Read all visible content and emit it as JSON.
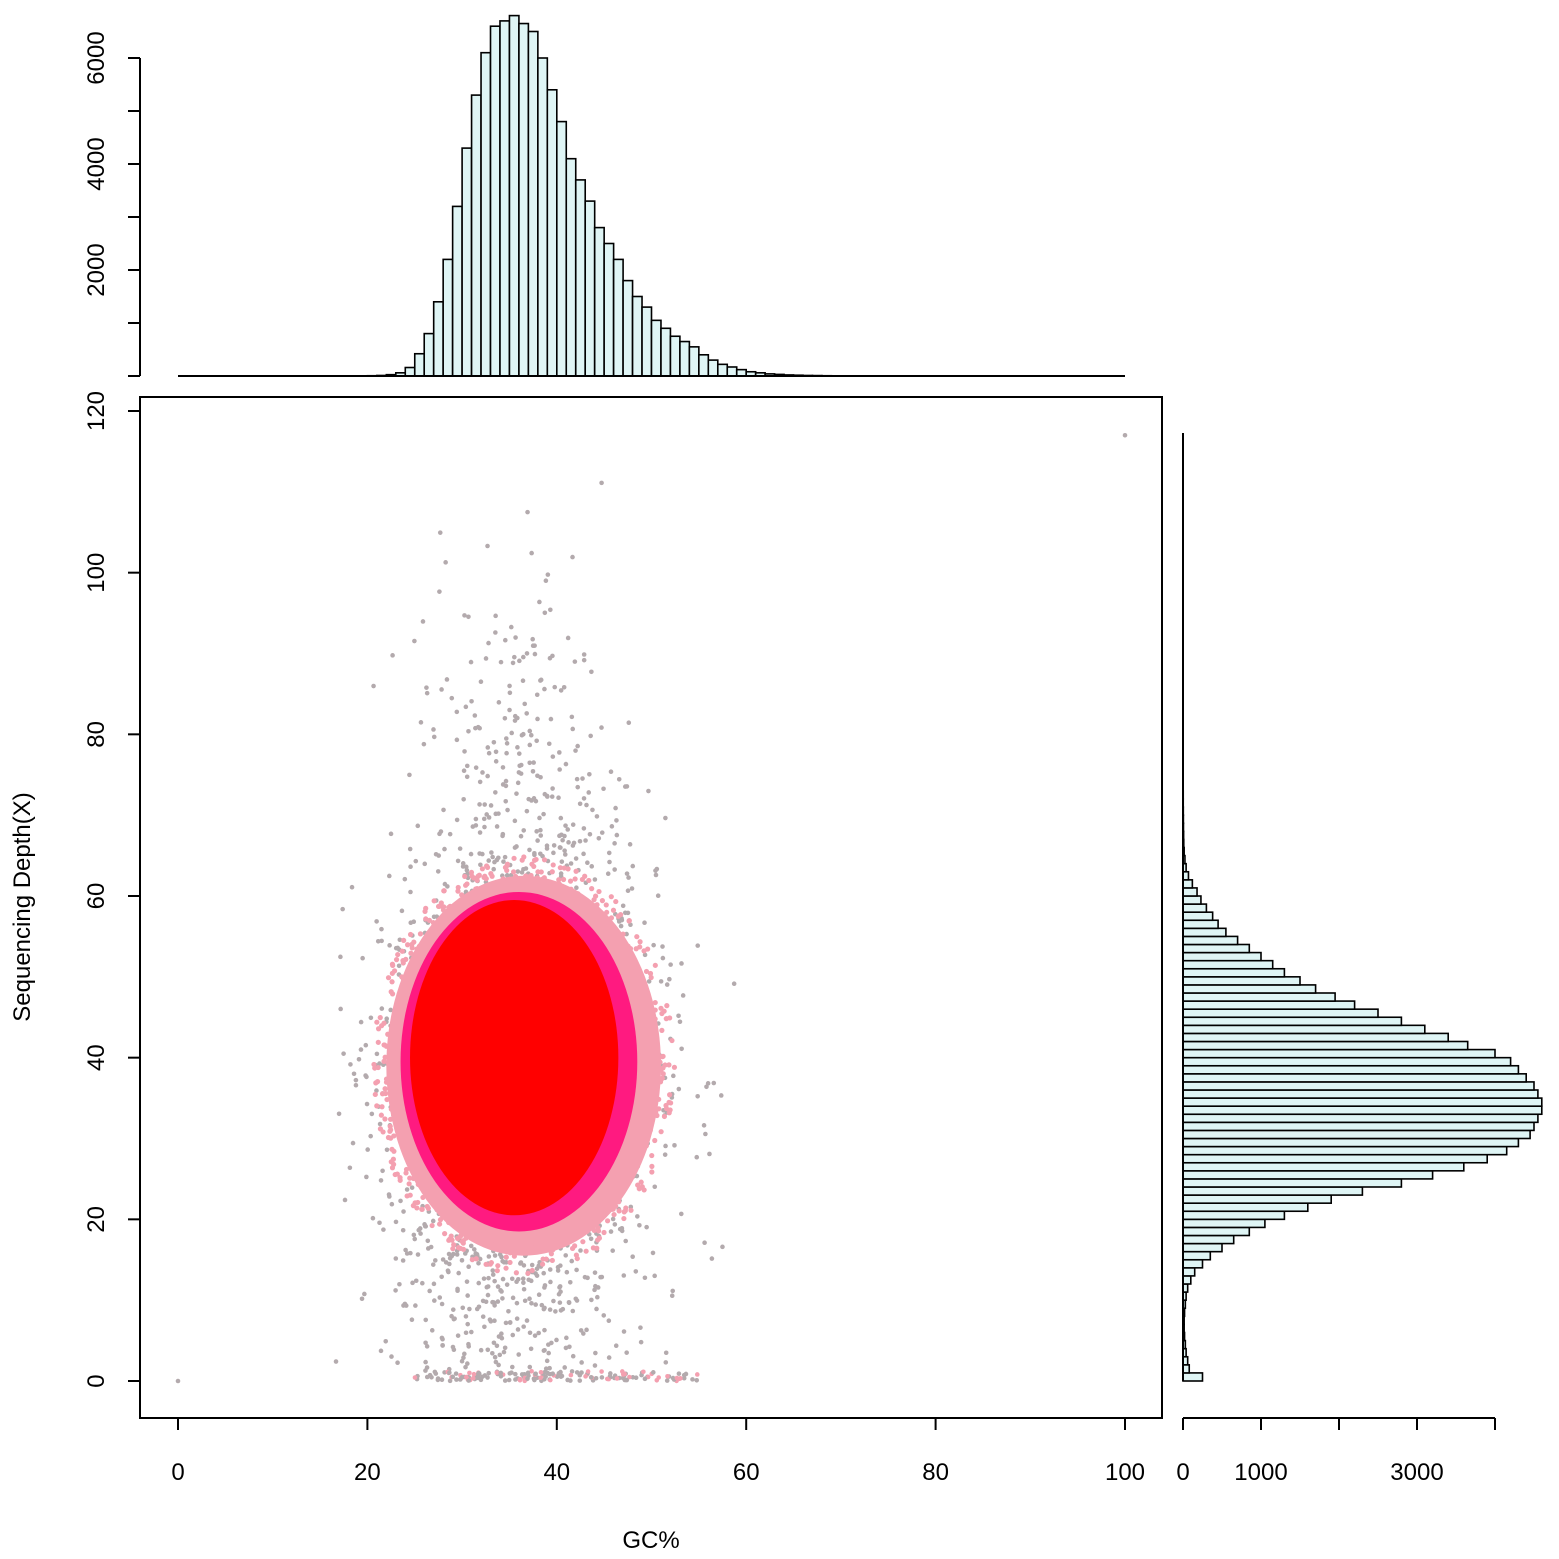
{
  "chart_data": {
    "type": "scatter",
    "title": "",
    "xlabel": "GC%",
    "ylabel": "Sequencing Depth(X)",
    "xlim": [
      0,
      100
    ],
    "ylim": [
      0,
      120
    ],
    "x_ticks": [
      "0",
      "20",
      "40",
      "60",
      "80",
      "100"
    ],
    "y_ticks": [
      "0",
      "20",
      "40",
      "60",
      "80",
      "100",
      "120"
    ],
    "density_colors": [
      "#b3aaad",
      "#f4a0b0",
      "#ff1a80",
      "#ff0000"
    ],
    "background_color": "#ffffff",
    "scatter_cluster": {
      "center_gc": 36,
      "center_depth": 40,
      "gc_range": [
        17,
        63
      ],
      "depth_range": [
        0,
        117
      ],
      "outlier_points": [
        [
          0,
          0
        ],
        [
          100,
          117
        ]
      ]
    },
    "top_histogram": {
      "type": "histogram",
      "bar_color": "#dff5f5",
      "x_bin_width": 1,
      "x_start": 0,
      "counts": [
        0,
        0,
        0,
        0,
        0,
        0,
        0,
        0,
        0,
        0,
        0,
        0,
        0,
        0,
        0,
        0,
        0,
        0,
        0,
        0,
        5,
        10,
        25,
        60,
        160,
        420,
        800,
        1400,
        2200,
        3200,
        4300,
        5300,
        6100,
        6600,
        6700,
        6800,
        6650,
        6500,
        6000,
        5400,
        4800,
        4100,
        3700,
        3300,
        2800,
        2500,
        2200,
        1800,
        1500,
        1300,
        1050,
        900,
        750,
        650,
        550,
        400,
        300,
        220,
        170,
        120,
        80,
        60,
        40,
        30,
        20,
        15,
        10,
        8,
        5,
        3,
        2,
        1,
        0,
        0,
        0,
        0,
        0,
        0,
        0,
        0,
        0,
        0,
        0,
        0,
        0,
        0,
        0,
        0,
        0,
        0,
        0,
        0,
        0,
        0,
        0,
        0,
        0,
        0,
        0,
        0
      ],
      "y_ticks": [
        "2000",
        "4000",
        "6000"
      ],
      "ylim": [
        0,
        7000
      ]
    },
    "right_histogram": {
      "type": "histogram",
      "bar_color": "#dff5f5",
      "y_bin_width": 1,
      "y_start": 0,
      "counts": [
        250,
        80,
        60,
        40,
        30,
        20,
        15,
        15,
        20,
        30,
        40,
        60,
        100,
        150,
        250,
        350,
        500,
        650,
        850,
        1050,
        1300,
        1600,
        1900,
        2300,
        2800,
        3200,
        3600,
        3900,
        4150,
        4300,
        4450,
        4500,
        4550,
        4600,
        4600,
        4550,
        4500,
        4400,
        4300,
        4200,
        4000,
        3650,
        3400,
        3100,
        2800,
        2500,
        2200,
        1950,
        1700,
        1500,
        1300,
        1150,
        1000,
        850,
        700,
        550,
        450,
        380,
        300,
        230,
        180,
        120,
        70,
        40,
        25,
        15,
        10,
        8,
        6,
        5,
        4,
        3,
        3,
        2,
        2,
        2,
        2,
        1,
        1,
        1,
        1,
        1,
        1,
        1,
        1,
        1,
        1,
        1,
        1,
        1,
        1,
        1,
        1,
        1,
        1,
        1,
        1,
        1,
        1,
        1,
        1,
        1,
        1,
        1,
        1,
        1,
        1,
        1,
        1,
        1,
        1,
        1,
        1,
        1,
        1,
        1,
        1
      ],
      "x_ticks": [
        "0",
        "1000",
        "3000"
      ],
      "xlim": [
        0,
        4000
      ]
    }
  }
}
